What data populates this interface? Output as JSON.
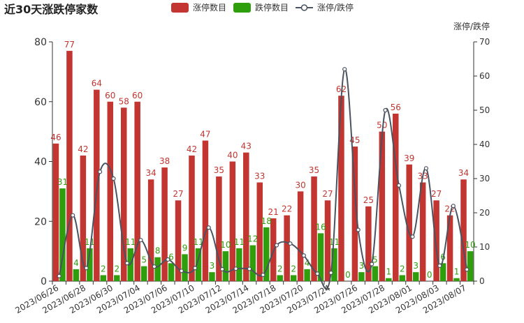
{
  "chart_data": {
    "type": "bar",
    "title": "近30天涨跌停家数",
    "legend": {
      "placement": "top-center",
      "items": [
        "涨停数目",
        "跌停数目",
        "涨停/跌停"
      ]
    },
    "categories": [
      "2023/06/26",
      "2023/06/27",
      "2023/06/28",
      "2023/06/29",
      "2023/06/30",
      "2023/07/03",
      "2023/07/04",
      "2023/07/05",
      "2023/07/06",
      "2023/07/07",
      "2023/07/10",
      "2023/07/11",
      "2023/07/12",
      "2023/07/13",
      "2023/07/14",
      "2023/07/17",
      "2023/07/18",
      "2023/07/19",
      "2023/07/20",
      "2023/07/21",
      "2023/07/24",
      "2023/07/25",
      "2023/07/26",
      "2023/07/27",
      "2023/07/28",
      "2023/07/31",
      "2023/08/01",
      "2023/08/02",
      "2023/08/03",
      "2023/08/04",
      "2023/08/07"
    ],
    "series": [
      {
        "name": "涨停数目",
        "type": "bar",
        "axis": "left",
        "values": [
          46,
          77,
          42,
          64,
          60,
          58,
          60,
          34,
          38,
          27,
          42,
          47,
          35,
          40,
          43,
          33,
          21,
          22,
          30,
          35,
          27,
          62,
          45,
          25,
          50,
          56,
          39,
          33,
          27,
          22,
          34
        ]
      },
      {
        "name": "跌停数目",
        "type": "bar",
        "axis": "left",
        "values": [
          31,
          4,
          11,
          2,
          2,
          11,
          5,
          8,
          6,
          9,
          11,
          3,
          10,
          11,
          12,
          18,
          2,
          2,
          4,
          16,
          11,
          0,
          3,
          5,
          1,
          2,
          3,
          0,
          6,
          1,
          10
        ]
      },
      {
        "name": "涨停/跌停",
        "type": "line",
        "axis": "right",
        "smooth": true,
        "values": [
          1.48,
          19.25,
          3.82,
          32,
          30,
          5.27,
          12,
          4.25,
          6.33,
          3,
          3.82,
          15.67,
          3.5,
          3.64,
          3.58,
          1.83,
          10.5,
          11,
          7.5,
          2.19,
          2.45,
          62,
          15,
          5,
          50,
          28,
          13,
          33,
          4.5,
          22,
          3.4
        ]
      }
    ],
    "y_left": {
      "min": 0,
      "max": 80,
      "ticks": [
        0,
        20,
        40,
        60,
        80
      ]
    },
    "y_right": {
      "label": "涨停/跌停",
      "min": 0,
      "max": 70,
      "ticks": [
        0,
        10,
        20,
        30,
        40,
        50,
        60,
        70
      ]
    },
    "x_tick_labels": [
      "2023/06/26",
      "2023/06/28",
      "2023/06/30",
      "2023/07/04",
      "2023/07/06",
      "2023/07/10",
      "2023/07/12",
      "2023/07/14",
      "2023/07/18",
      "2023/07/20",
      "2023/07/24",
      "2023/07/26",
      "2023/07/28",
      "2023/08/01",
      "2023/08/03",
      "2023/08/07"
    ],
    "colors": {
      "up": "#c23531",
      "down": "#2f9e0c",
      "line": "#4a5360",
      "up_label": "#c23531",
      "down_label": "#2f9e0c",
      "axis": "#333333"
    },
    "grid": false
  }
}
